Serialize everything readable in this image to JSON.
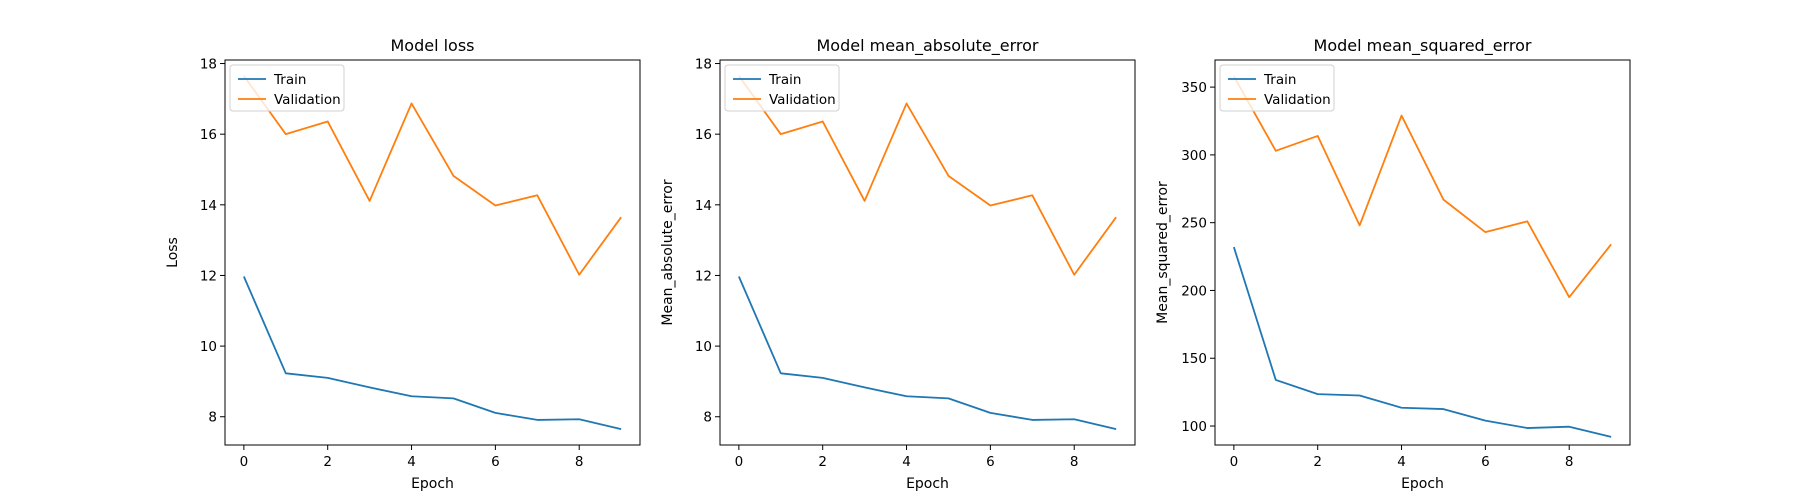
{
  "chart_data": [
    {
      "type": "line",
      "title": "Model loss",
      "xlabel": "Epoch",
      "ylabel": "Loss",
      "x": [
        0,
        1,
        2,
        3,
        4,
        5,
        6,
        7,
        8,
        9
      ],
      "xlim": [
        -0.45,
        9.45
      ],
      "ylim": [
        7.2,
        18.1
      ],
      "xticks": [
        0,
        2,
        4,
        6,
        8
      ],
      "yticks": [
        8,
        10,
        12,
        14,
        16,
        18
      ],
      "grid": false,
      "legend": "upper left",
      "series": [
        {
          "name": "Train",
          "color": "#1f77b4",
          "values": [
            11.97,
            9.23,
            9.1,
            8.83,
            8.58,
            8.52,
            8.11,
            7.91,
            7.93,
            7.65
          ]
        },
        {
          "name": "Validation",
          "color": "#ff7f0e",
          "values": [
            17.65,
            16.0,
            16.36,
            14.11,
            16.87,
            14.82,
            13.98,
            14.27,
            12.02,
            13.65
          ]
        }
      ]
    },
    {
      "type": "line",
      "title": "Model mean_absolute_error",
      "xlabel": "Epoch",
      "ylabel": "Mean_absolute_error",
      "x": [
        0,
        1,
        2,
        3,
        4,
        5,
        6,
        7,
        8,
        9
      ],
      "xlim": [
        -0.45,
        9.45
      ],
      "ylim": [
        7.2,
        18.1
      ],
      "xticks": [
        0,
        2,
        4,
        6,
        8
      ],
      "yticks": [
        8,
        10,
        12,
        14,
        16,
        18
      ],
      "grid": false,
      "legend": "upper left",
      "series": [
        {
          "name": "Train",
          "color": "#1f77b4",
          "values": [
            11.97,
            9.23,
            9.1,
            8.83,
            8.58,
            8.52,
            8.11,
            7.91,
            7.93,
            7.65
          ]
        },
        {
          "name": "Validation",
          "color": "#ff7f0e",
          "values": [
            17.65,
            16.0,
            16.36,
            14.11,
            16.87,
            14.82,
            13.98,
            14.27,
            12.02,
            13.65
          ]
        }
      ]
    },
    {
      "type": "line",
      "title": "Model mean_squared_error",
      "xlabel": "Epoch",
      "ylabel": "Mean_squared_error",
      "x": [
        0,
        1,
        2,
        3,
        4,
        5,
        6,
        7,
        8,
        9
      ],
      "xlim": [
        -0.45,
        9.45
      ],
      "ylim": [
        86,
        370
      ],
      "xticks": [
        0,
        2,
        4,
        6,
        8
      ],
      "yticks": [
        100,
        150,
        200,
        250,
        300,
        350
      ],
      "grid": false,
      "legend": "upper left",
      "series": [
        {
          "name": "Train",
          "color": "#1f77b4",
          "values": [
            232,
            134,
            123.5,
            122.5,
            113.5,
            112.5,
            104,
            98.5,
            99.5,
            92
          ]
        },
        {
          "name": "Validation",
          "color": "#ff7f0e",
          "values": [
            358,
            303,
            314,
            248,
            329,
            267,
            243,
            251,
            195,
            234
          ]
        }
      ]
    }
  ]
}
